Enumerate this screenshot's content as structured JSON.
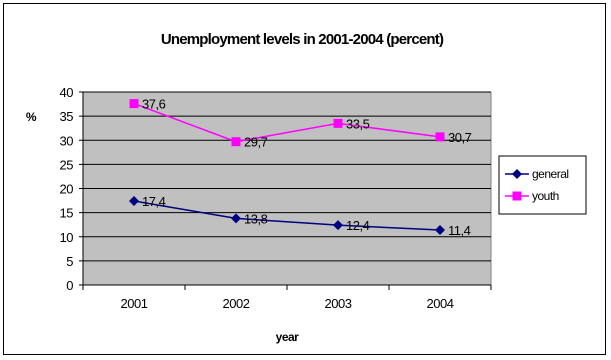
{
  "chart_data": {
    "type": "line",
    "title": "Unemployment levels in 2001-2004  (percent)",
    "xlabel": "year",
    "ylabel": "%",
    "categories": [
      "2001",
      "2002",
      "2003",
      "2004"
    ],
    "ylim": [
      0,
      40
    ],
    "yticks": [
      "0",
      "5",
      "10",
      "15",
      "20",
      "25",
      "30",
      "35",
      "40"
    ],
    "ytick_values": [
      0,
      5,
      10,
      15,
      20,
      25,
      30,
      35,
      40
    ],
    "grid": true,
    "legend_position": "right",
    "plot_background": "#c0c0c0",
    "series": [
      {
        "name": "general",
        "color": "#000080",
        "marker": "diamond",
        "values": [
          17.4,
          13.8,
          12.4,
          11.4
        ],
        "labels": [
          "17,4",
          "13,8",
          "12,4",
          "11,4"
        ]
      },
      {
        "name": "youth",
        "color": "#ff00ff",
        "marker": "square",
        "values": [
          37.6,
          29.7,
          33.5,
          30.7
        ],
        "labels": [
          "37,6",
          "29,7",
          "33,5",
          "30,7"
        ]
      }
    ]
  }
}
